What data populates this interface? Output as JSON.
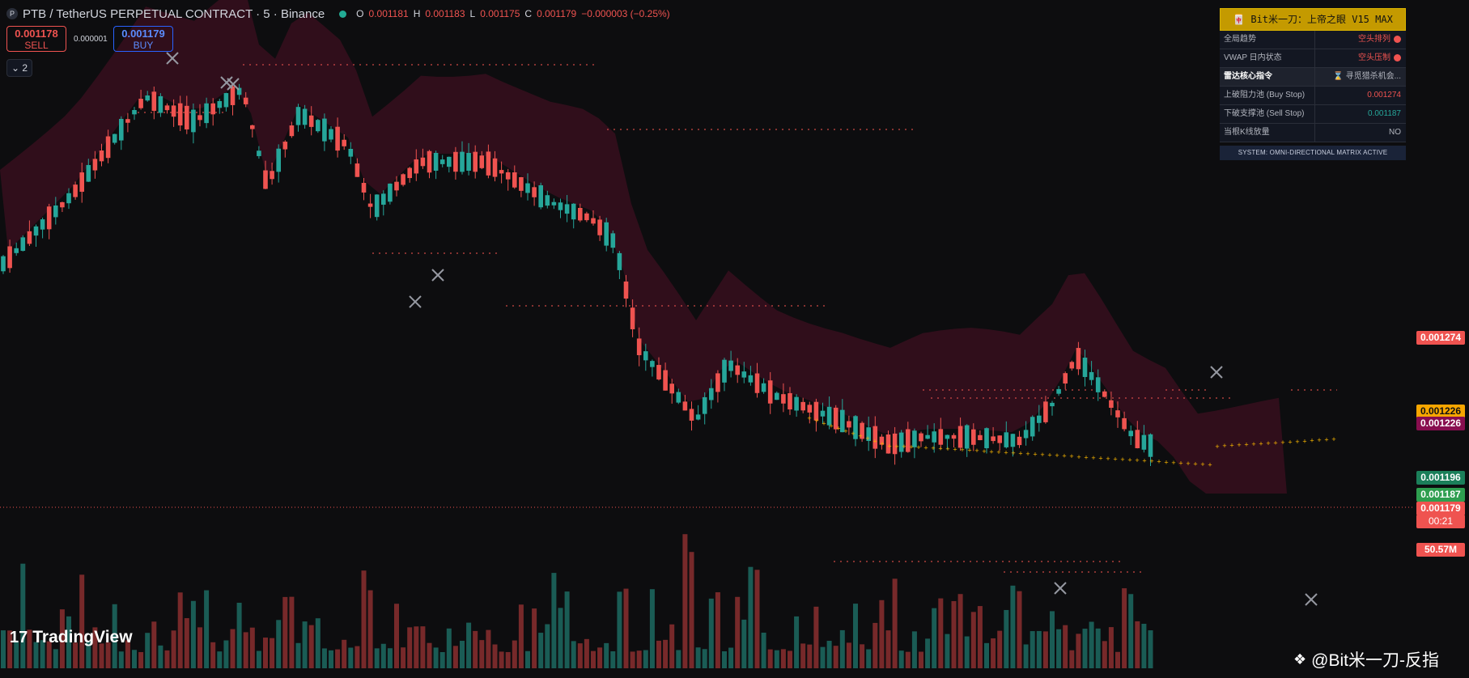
{
  "header": {
    "logo_letter": "P",
    "title": "PTB / TetherUS PERPETUAL CONTRACT · 5 · Binance",
    "ohlc": {
      "o_label": "O",
      "o": "0.001181",
      "h_label": "H",
      "h": "0.001183",
      "l_label": "L",
      "l": "0.001175",
      "c_label": "C",
      "c": "0.001179",
      "change": "−0.000003 (−0.25%)"
    }
  },
  "trade": {
    "sell_price": "0.001178",
    "sell_label": "SELL",
    "spread": "0.000001",
    "buy_price": "0.001179",
    "buy_label": "BUY"
  },
  "indicators_toggle": "⌄ 2",
  "panel": {
    "title": "🀄 Bit米一刀：上帝之眼 V15 MAX",
    "rows": [
      {
        "k": "全局趋势",
        "v": "空头排列"
      },
      {
        "k": "VWAP 日内状态",
        "v": "空头压制"
      },
      {
        "k": "雷达核心指令",
        "v": "⌛ 寻觅猎杀机会..."
      },
      {
        "k": "上破阻力池 (Buy Stop)",
        "v": "0.001274"
      },
      {
        "k": "下破支撑池 (Sell Stop)",
        "v": "0.001187"
      },
      {
        "k": "当根K线放量",
        "v": "NO"
      }
    ],
    "system": "SYSTEM: OMNI-DIRECTIONAL MATRIX ACTIVE"
  },
  "price_labels": {
    "p1": "0.001274",
    "p2": "0.001226",
    "p3": "0.001226",
    "p4": "0.001196",
    "p5": "0.001187",
    "p6": "0.001179",
    "countdown": "00:21",
    "volume": "50.57M"
  },
  "branding": {
    "tradingview": "TradingView",
    "tv_mark": "17",
    "watermark": "@Bit米一刀-反指"
  },
  "colors": {
    "up": "#26a69a",
    "down": "#ef5350",
    "dots": "#f7b500",
    "p1_bg": "#ef5350",
    "p2_bg": "#f7a600",
    "p3_bg": "#880e4f",
    "p4_bg": "#1b7f5a",
    "p5_bg": "#2e9e4f",
    "p6_bg": "#ef5350",
    "vol_bg": "#ef5350"
  }
}
